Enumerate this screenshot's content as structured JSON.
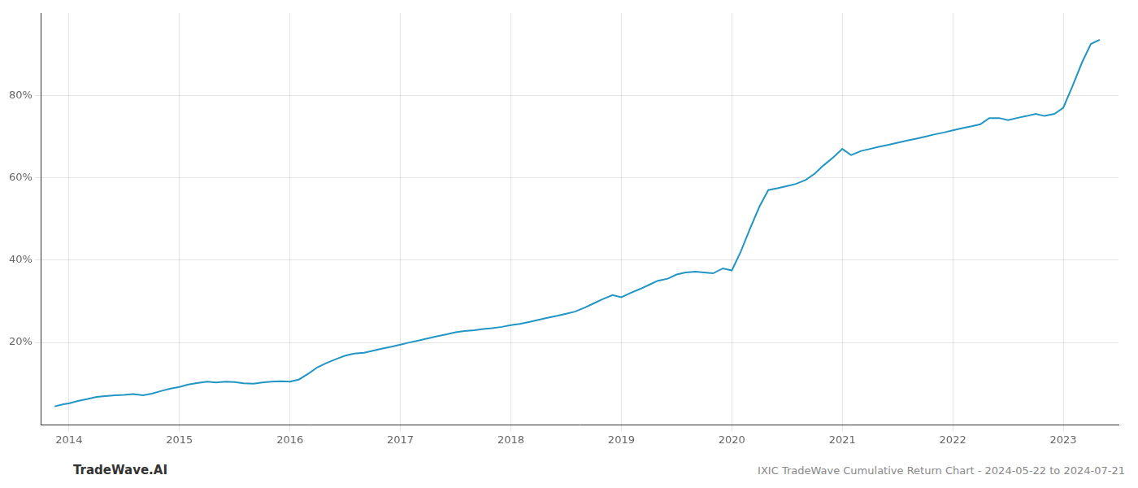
{
  "chart_data": {
    "type": "line",
    "color": "#2196C4",
    "grid": true,
    "annotations": [
      "TradeWave.AI",
      "IXIC TradeWave Cumulative Return Chart - 2024-05-22 to 2024-07-21"
    ],
    "x": [
      2013.87,
      2013.95,
      2014.0,
      2014.08,
      2014.17,
      2014.25,
      2014.33,
      2014.42,
      2014.5,
      2014.58,
      2014.67,
      2014.75,
      2014.83,
      2014.92,
      2015.0,
      2015.08,
      2015.17,
      2015.25,
      2015.33,
      2015.42,
      2015.5,
      2015.58,
      2015.67,
      2015.75,
      2015.83,
      2015.92,
      2016.0,
      2016.08,
      2016.17,
      2016.25,
      2016.33,
      2016.42,
      2016.5,
      2016.58,
      2016.67,
      2016.75,
      2016.83,
      2016.92,
      2017.0,
      2017.08,
      2017.17,
      2017.25,
      2017.33,
      2017.42,
      2017.5,
      2017.58,
      2017.67,
      2017.75,
      2017.83,
      2017.92,
      2018.0,
      2018.08,
      2018.17,
      2018.25,
      2018.33,
      2018.42,
      2018.5,
      2018.58,
      2018.67,
      2018.75,
      2018.83,
      2018.92,
      2019.0,
      2019.08,
      2019.17,
      2019.25,
      2019.33,
      2019.42,
      2019.5,
      2019.58,
      2019.67,
      2019.75,
      2019.83,
      2019.92,
      2020.0,
      2020.08,
      2020.17,
      2020.25,
      2020.33,
      2020.42,
      2020.5,
      2020.58,
      2020.67,
      2020.75,
      2020.83,
      2020.92,
      2021.0,
      2021.08,
      2021.17,
      2021.25,
      2021.33,
      2021.42,
      2021.5,
      2021.58,
      2021.67,
      2021.75,
      2021.83,
      2021.92,
      2022.0,
      2022.08,
      2022.17,
      2022.25,
      2022.33,
      2022.42,
      2022.5,
      2022.58,
      2022.67,
      2022.75,
      2022.83,
      2022.92,
      2023.0,
      2023.08,
      2023.17,
      2023.25,
      2023.33
    ],
    "values": [
      4.5,
      5.0,
      5.2,
      5.8,
      6.3,
      6.8,
      7.0,
      7.2,
      7.3,
      7.5,
      7.2,
      7.6,
      8.2,
      8.8,
      9.2,
      9.8,
      10.2,
      10.5,
      10.3,
      10.5,
      10.4,
      10.1,
      10.0,
      10.3,
      10.5,
      10.6,
      10.5,
      11.0,
      12.5,
      14.0,
      15.0,
      16.0,
      16.8,
      17.3,
      17.5,
      18.0,
      18.5,
      19.0,
      19.5,
      20.0,
      20.5,
      21.0,
      21.5,
      22.0,
      22.5,
      22.8,
      23.0,
      23.3,
      23.5,
      23.8,
      24.2,
      24.5,
      25.0,
      25.5,
      26.0,
      26.5,
      27.0,
      27.5,
      28.5,
      29.5,
      30.5,
      31.5,
      31.0,
      32.0,
      33.0,
      34.0,
      35.0,
      35.5,
      36.5,
      37.0,
      37.2,
      37.0,
      36.8,
      38.0,
      37.5,
      42.0,
      48.0,
      53.0,
      57.0,
      57.5,
      58.0,
      58.5,
      59.5,
      61.0,
      63.0,
      65.0,
      67.0,
      65.5,
      66.5,
      67.0,
      67.5,
      68.0,
      68.5,
      69.0,
      69.5,
      70.0,
      70.5,
      71.0,
      71.5,
      72.0,
      72.5,
      73.0,
      74.5,
      74.5,
      74.0,
      74.5,
      75.0,
      75.5,
      75.0,
      75.5,
      77.0,
      82.0,
      88.0,
      92.5,
      93.5
    ],
    "xlim": [
      2013.75,
      2023.5
    ],
    "xticks": [
      2014,
      2015,
      2016,
      2017,
      2018,
      2019,
      2020,
      2021,
      2022,
      2023
    ],
    "ylim": [
      0,
      100
    ],
    "yticks": [
      {
        "value": 20,
        "label": "20%"
      },
      {
        "value": 40,
        "label": "40%"
      },
      {
        "value": 60,
        "label": "60%"
      },
      {
        "value": 80,
        "label": "80%"
      }
    ]
  }
}
